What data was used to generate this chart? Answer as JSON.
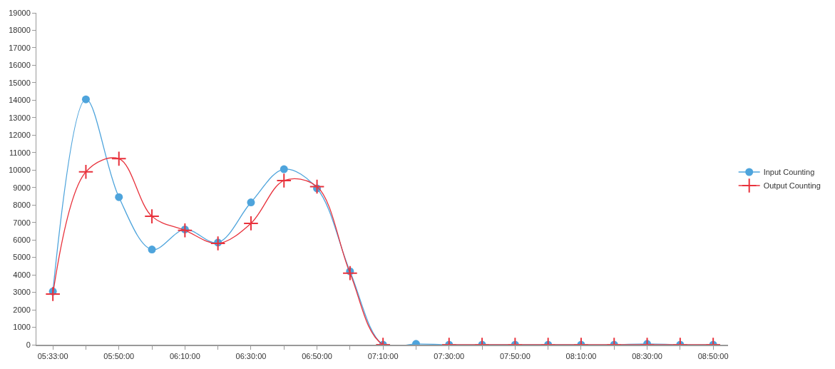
{
  "chart_data": {
    "type": "line",
    "categories": [
      "05:33:00",
      null,
      "05:50:00",
      null,
      "06:10:00",
      null,
      "06:30:00",
      null,
      "06:50:00",
      null,
      "07:10:00",
      null,
      "07:30:00",
      null,
      "07:50:00",
      null,
      "08:10:00",
      null,
      "08:30:00",
      null,
      "08:50:00"
    ],
    "series": [
      {
        "name": "Input Counting",
        "color": "#4ea4dc",
        "marker": "circle",
        "values": [
          3050,
          14050,
          8450,
          5450,
          6600,
          5850,
          8150,
          10050,
          8950,
          4200,
          0,
          50,
          0,
          0,
          0,
          0,
          0,
          0,
          50,
          0,
          0
        ]
      },
      {
        "name": "Output Counting",
        "color": "#e8323c",
        "marker": "cross",
        "values": [
          2900,
          9900,
          10650,
          7350,
          6550,
          5800,
          6950,
          9400,
          9050,
          4100,
          0,
          null,
          0,
          0,
          0,
          0,
          0,
          0,
          0,
          0,
          0
        ]
      }
    ],
    "ylim": [
      0,
      19000
    ],
    "yticks": [
      0,
      1000,
      2000,
      3000,
      4000,
      5000,
      6000,
      7000,
      8000,
      9000,
      10000,
      11000,
      12000,
      13000,
      14000,
      15000,
      16000,
      17000,
      18000,
      19000
    ],
    "legend": "right"
  }
}
